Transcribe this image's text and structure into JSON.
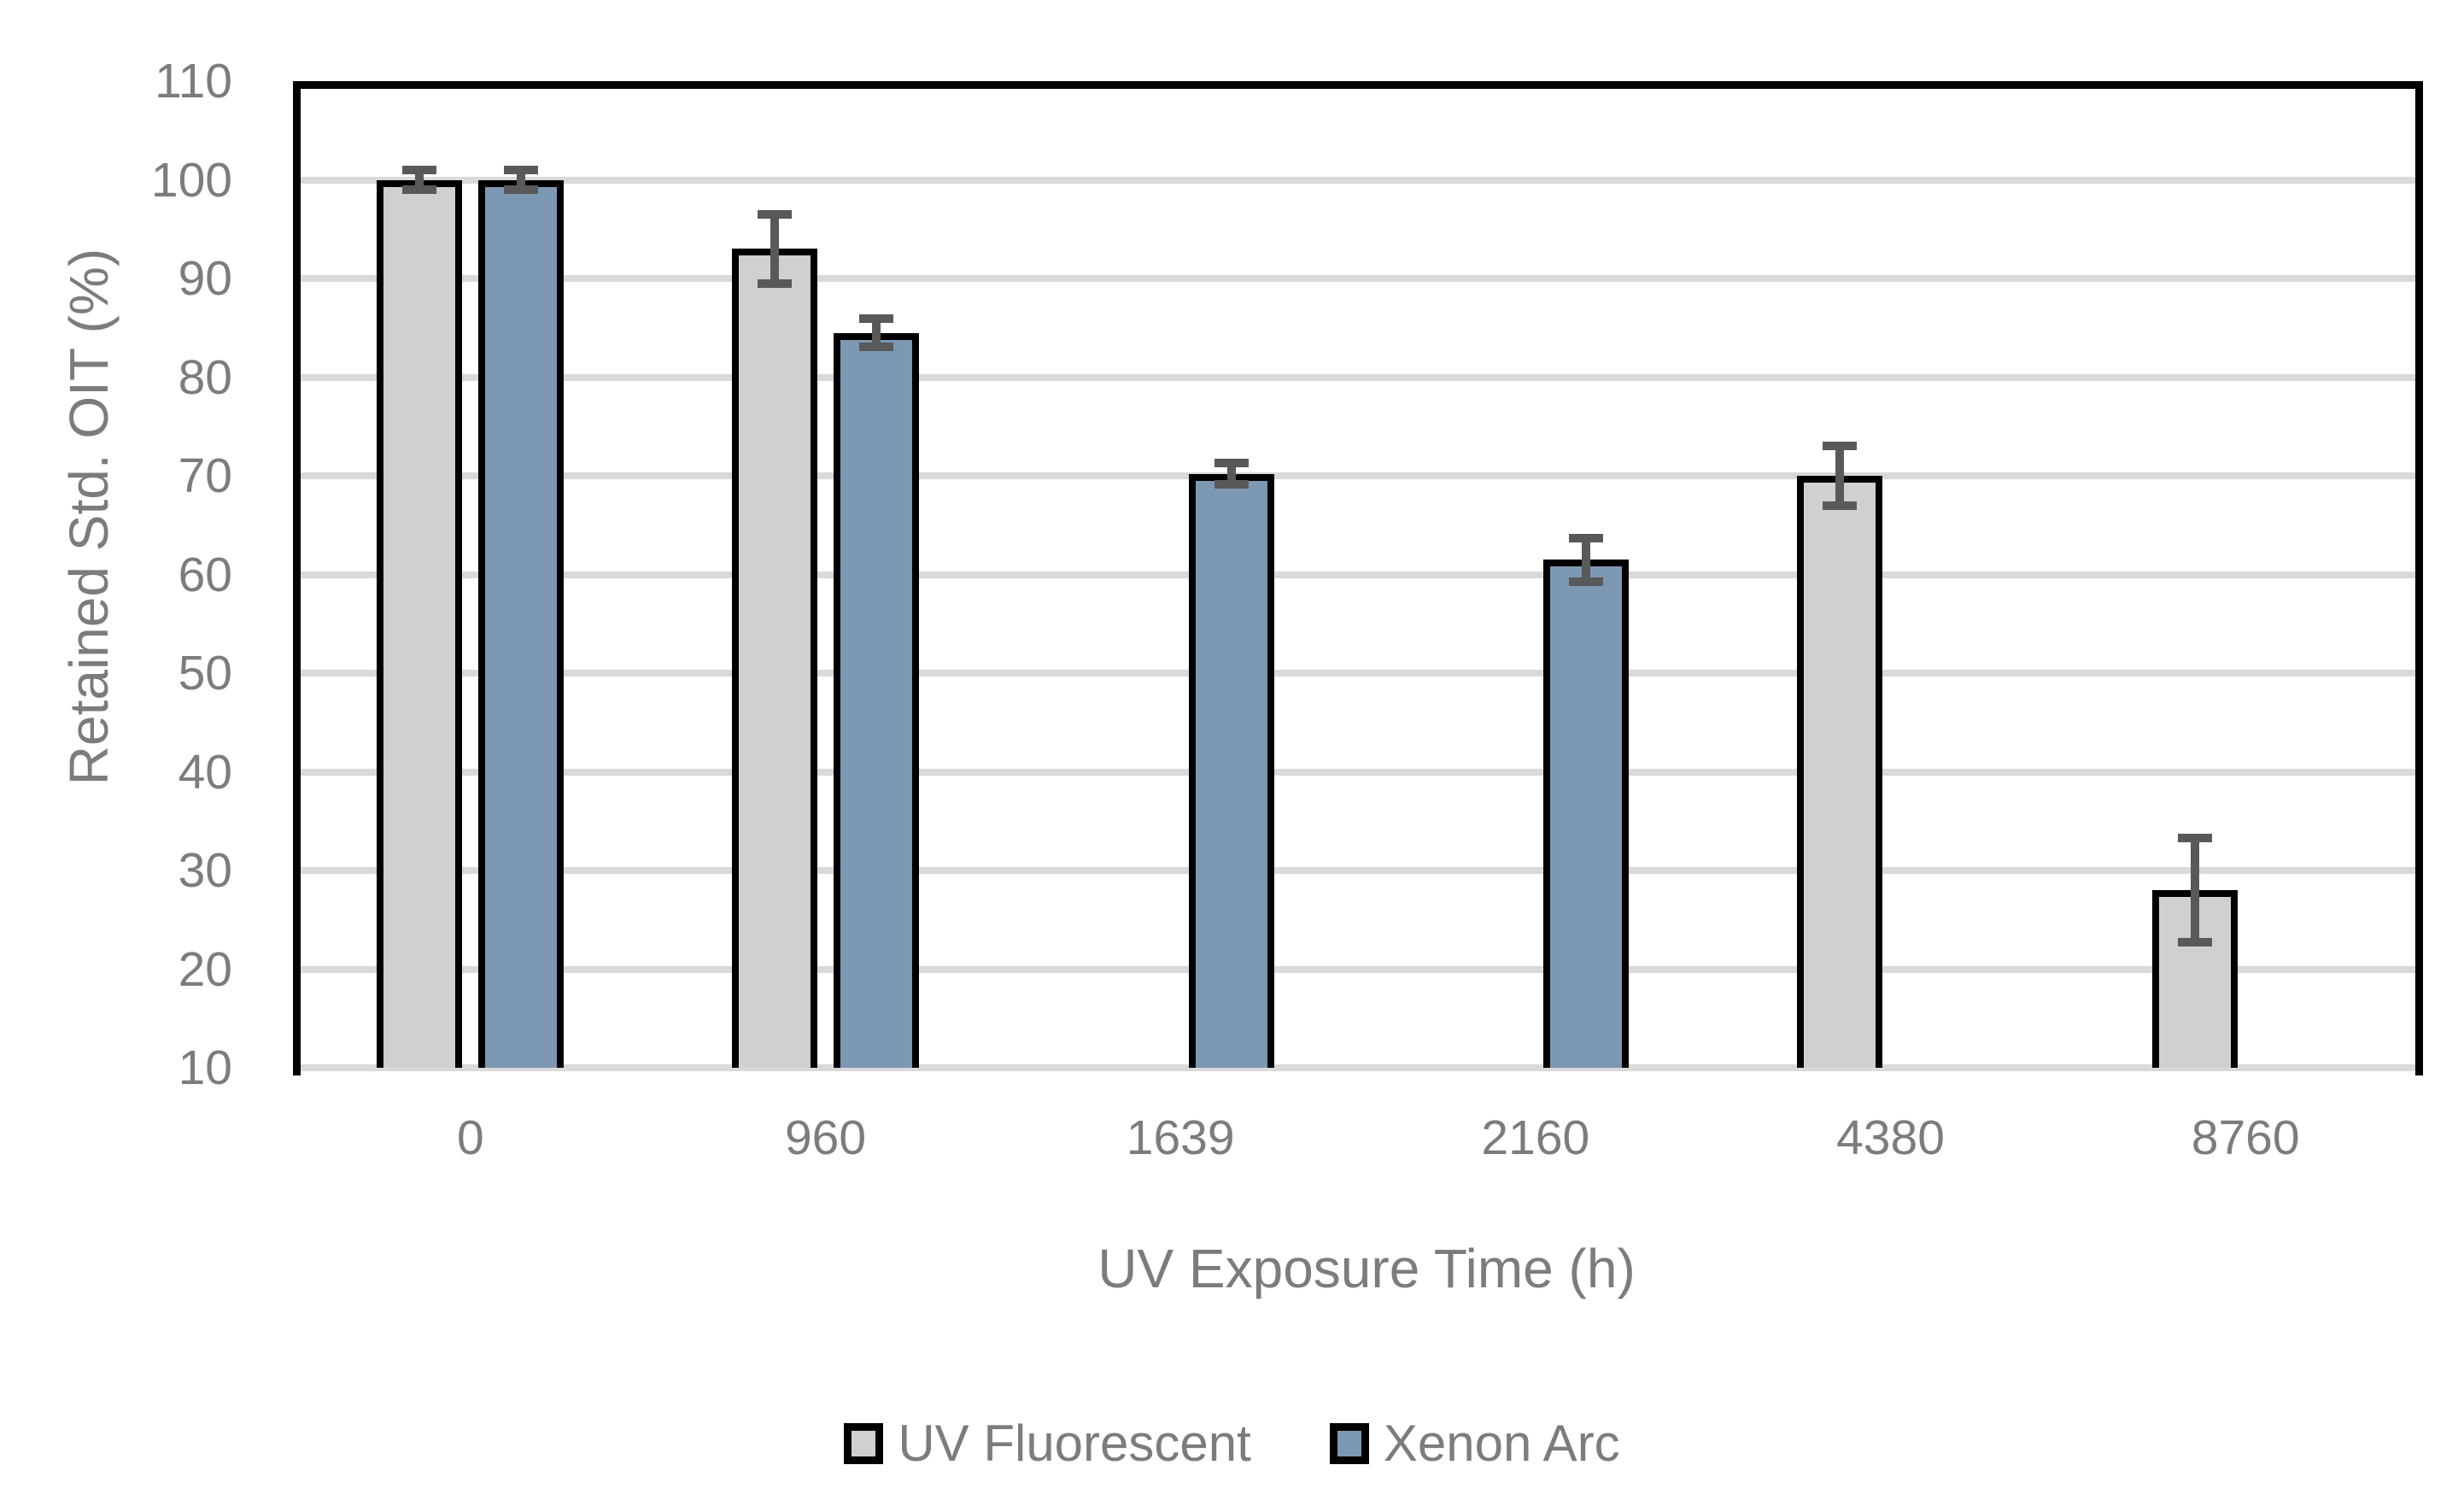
{
  "chart_data": {
    "type": "bar",
    "title": "",
    "xlabel": "UV Exposure Time (h)",
    "ylabel": "Retained Std. OIT (%)",
    "categories": [
      "0",
      "960",
      "1639",
      "2160",
      "4380",
      "8760"
    ],
    "series": [
      {
        "name": "UV Fluorescent",
        "color": "#d1d0ce",
        "values": [
          100,
          93,
          null,
          null,
          70,
          28
        ],
        "errors": [
          1,
          3.5,
          null,
          null,
          3,
          5.3
        ]
      },
      {
        "name": "Xenon Arc",
        "color": "#7d98b3",
        "values": [
          100,
          84.5,
          70.2,
          61.5,
          null,
          null
        ],
        "errors": [
          1,
          1.4,
          1.1,
          2.2,
          null,
          null
        ]
      }
    ],
    "y_axis": {
      "min": 10,
      "max": 110,
      "step": 10,
      "ticks": [
        "110",
        "100",
        "90",
        "80",
        "70",
        "60",
        "50",
        "40",
        "30",
        "20",
        "10"
      ]
    },
    "x_axis": {
      "ticks": [
        "0",
        "960",
        "1639",
        "2160",
        "4380",
        "8760"
      ]
    },
    "legend_position": "bottom",
    "grid": true,
    "colors": {
      "gridline": "#d9d9d9",
      "plot_border": "#000000",
      "bar_outline": "#000000",
      "error_bar": "#595959",
      "text": "#7c7c7c",
      "background": "#ffffff"
    }
  }
}
